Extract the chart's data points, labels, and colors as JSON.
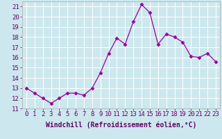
{
  "x": [
    0,
    1,
    2,
    3,
    4,
    5,
    6,
    7,
    8,
    9,
    10,
    11,
    12,
    13,
    14,
    15,
    16,
    17,
    18,
    19,
    20,
    21,
    22,
    23
  ],
  "y": [
    13.0,
    12.5,
    12.0,
    11.5,
    12.0,
    12.5,
    12.5,
    12.3,
    13.0,
    14.5,
    16.4,
    17.9,
    17.3,
    19.5,
    21.2,
    20.4,
    17.3,
    18.3,
    18.0,
    17.5,
    16.1,
    16.0,
    16.4,
    15.6
  ],
  "line_color": "#990099",
  "marker": "D",
  "marker_size": 2.5,
  "bg_color": "#cce8ee",
  "grid_color": "#bbdddd",
  "xlabel": "Windchill (Refroidissement éolien,°C)",
  "xlabel_fontsize": 7,
  "tick_fontsize": 6.5,
  "xlim": [
    -0.5,
    23.5
  ],
  "ylim": [
    11,
    21.5
  ],
  "yticks": [
    11,
    12,
    13,
    14,
    15,
    16,
    17,
    18,
    19,
    20,
    21
  ],
  "xticks": [
    0,
    1,
    2,
    3,
    4,
    5,
    6,
    7,
    8,
    9,
    10,
    11,
    12,
    13,
    14,
    15,
    16,
    17,
    18,
    19,
    20,
    21,
    22,
    23
  ],
  "label_color": "#660066",
  "spine_color": "#aaaaaa"
}
